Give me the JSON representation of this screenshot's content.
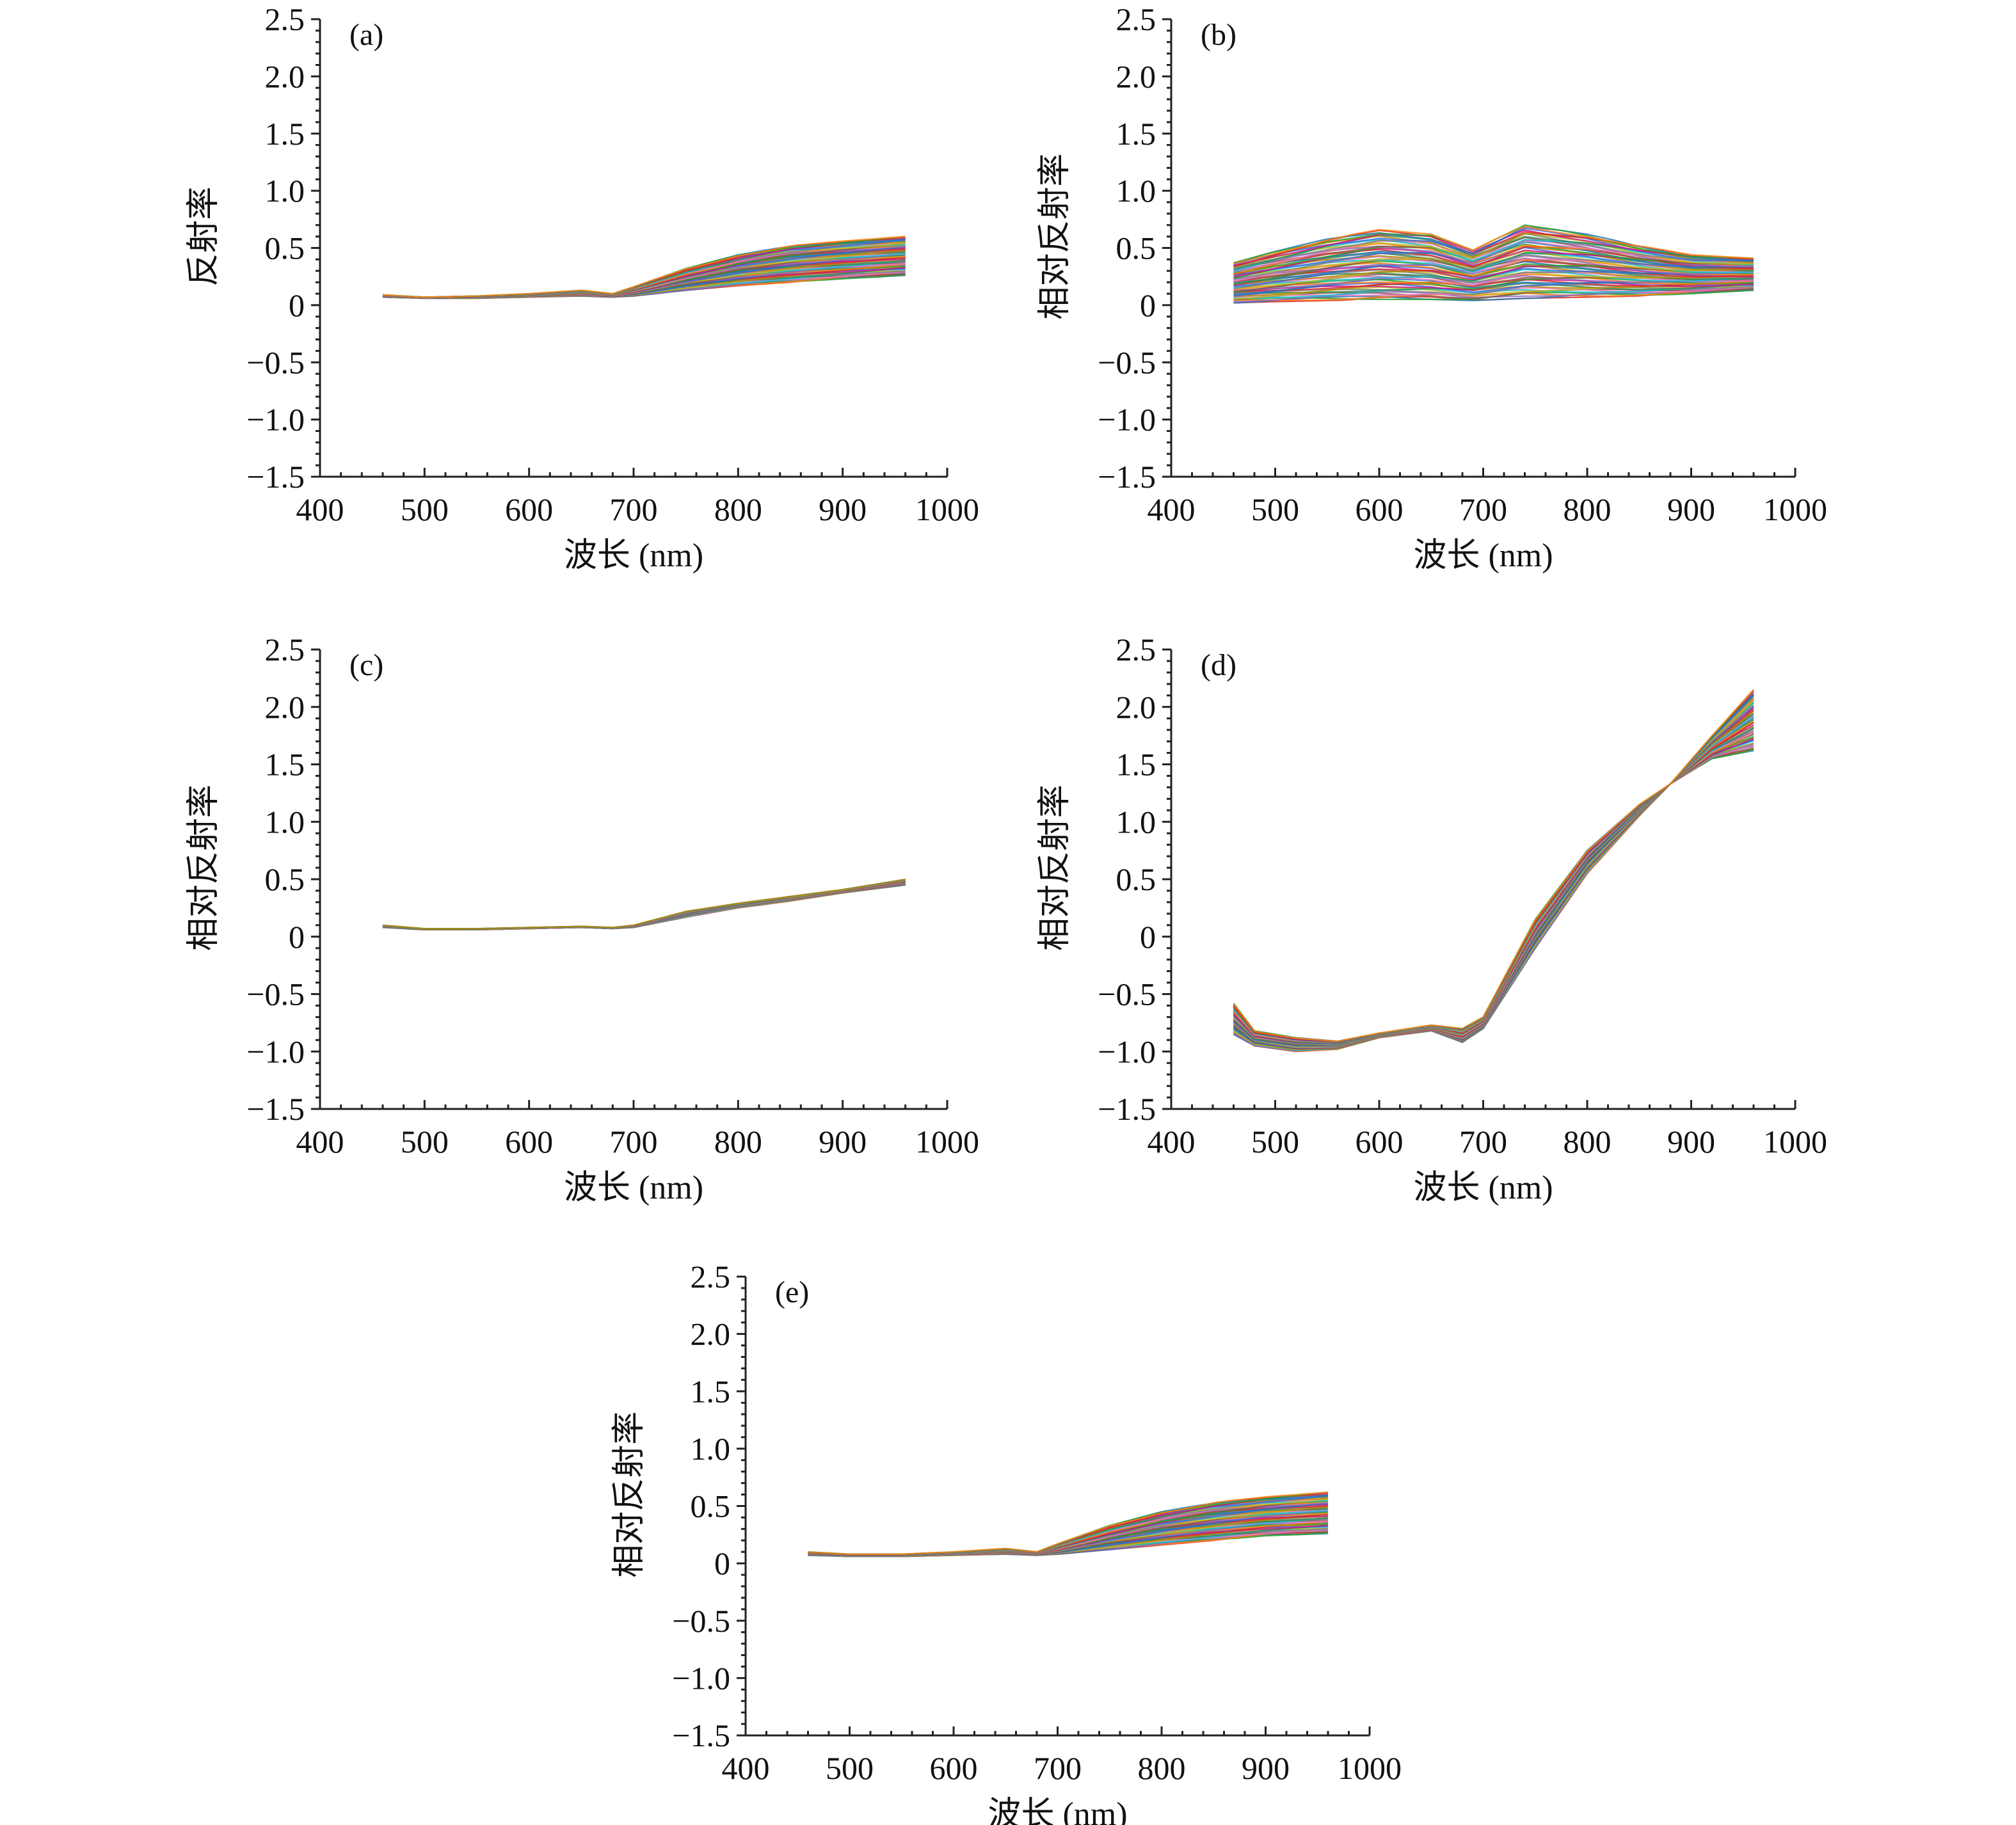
{
  "chart_data": [
    {
      "type": "line",
      "panel_label": "(a)",
      "xlabel": "波长 (nm)",
      "ylabel": "反射率",
      "xlim": [
        400,
        1000
      ],
      "ylim": [
        -1.5,
        2.5
      ],
      "x_ticks": [
        "400",
        "500",
        "600",
        "700",
        "800",
        "900",
        "1000"
      ],
      "y_ticks": [
        "2.5",
        "2.0",
        "1.5",
        "1.0",
        "0.5",
        "0",
        "−0.5",
        "−1.0",
        "−1.5"
      ],
      "grid": false,
      "legend": false,
      "curve_count": 60,
      "x": [
        460,
        500,
        550,
        600,
        650,
        680,
        700,
        750,
        800,
        850,
        900,
        960
      ],
      "envelope": {
        "lower": [
          0.07,
          0.06,
          0.06,
          0.07,
          0.08,
          0.07,
          0.08,
          0.13,
          0.17,
          0.2,
          0.23,
          0.26
        ],
        "upper": [
          0.09,
          0.07,
          0.08,
          0.1,
          0.13,
          0.1,
          0.16,
          0.32,
          0.44,
          0.52,
          0.56,
          0.6
        ]
      }
    },
    {
      "type": "line",
      "panel_label": "(b)",
      "xlabel": "波长 (nm)",
      "ylabel": "相对反射率",
      "xlim": [
        400,
        1000
      ],
      "ylim": [
        -1.5,
        2.5
      ],
      "x_ticks": [
        "400",
        "500",
        "600",
        "700",
        "800",
        "900",
        "1000"
      ],
      "y_ticks": [
        "2.5",
        "2.0",
        "1.5",
        "1.0",
        "0.5",
        "0",
        "−0.5",
        "−1.0",
        "−1.5"
      ],
      "grid": false,
      "legend": false,
      "curve_count": 60,
      "x": [
        460,
        500,
        550,
        600,
        650,
        690,
        740,
        800,
        850,
        900,
        960
      ],
      "envelope": {
        "lower": [
          0.02,
          0.03,
          0.04,
          0.05,
          0.05,
          0.04,
          0.06,
          0.07,
          0.08,
          0.1,
          0.13
        ],
        "upper": [
          0.37,
          0.47,
          0.58,
          0.66,
          0.62,
          0.48,
          0.7,
          0.62,
          0.52,
          0.44,
          0.41
        ]
      }
    },
    {
      "type": "line",
      "panel_label": "(c)",
      "xlabel": "波长 (nm)",
      "ylabel": "相对反射率",
      "xlim": [
        400,
        1000
      ],
      "ylim": [
        -1.5,
        2.5
      ],
      "x_ticks": [
        "400",
        "500",
        "600",
        "700",
        "800",
        "900",
        "1000"
      ],
      "y_ticks": [
        "2.5",
        "2.0",
        "1.5",
        "1.0",
        "0.5",
        "0",
        "−0.5",
        "−1.0",
        "−1.5"
      ],
      "grid": false,
      "legend": false,
      "curve_count": 40,
      "x": [
        460,
        500,
        550,
        600,
        650,
        680,
        700,
        750,
        800,
        850,
        900,
        960
      ],
      "envelope": {
        "lower": [
          0.08,
          0.06,
          0.06,
          0.07,
          0.08,
          0.07,
          0.08,
          0.17,
          0.25,
          0.31,
          0.38,
          0.45
        ],
        "upper": [
          0.1,
          0.07,
          0.07,
          0.08,
          0.09,
          0.08,
          0.1,
          0.22,
          0.29,
          0.35,
          0.41,
          0.5
        ]
      }
    },
    {
      "type": "line",
      "panel_label": "(d)",
      "xlabel": "波长 (nm)",
      "ylabel": "相对反射率",
      "xlim": [
        400,
        1000
      ],
      "ylim": [
        -1.5,
        2.5
      ],
      "x_ticks": [
        "400",
        "500",
        "600",
        "700",
        "800",
        "900",
        "1000"
      ],
      "y_ticks": [
        "2.5",
        "2.0",
        "1.5",
        "1.0",
        "0.5",
        "0",
        "−0.5",
        "−1.0",
        "−1.5"
      ],
      "grid": false,
      "legend": false,
      "curve_count": 60,
      "x": [
        460,
        480,
        520,
        560,
        600,
        650,
        680,
        700,
        750,
        800,
        850,
        880,
        920,
        960
      ],
      "envelope": {
        "lower": [
          -0.85,
          -0.95,
          -1.0,
          -0.98,
          -0.88,
          -0.82,
          -0.92,
          -0.8,
          -0.1,
          0.55,
          1.05,
          1.33,
          1.55,
          1.62
        ],
        "upper": [
          -0.58,
          -0.82,
          -0.88,
          -0.91,
          -0.84,
          -0.77,
          -0.8,
          -0.7,
          0.15,
          0.75,
          1.15,
          1.33,
          1.75,
          2.15
        ]
      }
    },
    {
      "type": "line",
      "panel_label": "(e)",
      "xlabel": "波长 (nm)",
      "ylabel": "相对反射率",
      "xlim": [
        400,
        1000
      ],
      "ylim": [
        -1.5,
        2.5
      ],
      "x_ticks": [
        "400",
        "500",
        "600",
        "700",
        "800",
        "900",
        "1000"
      ],
      "y_ticks": [
        "2.5",
        "2.0",
        "1.5",
        "1.0",
        "0.5",
        "0",
        "−0.5",
        "−1.0",
        "−1.5"
      ],
      "grid": false,
      "legend": false,
      "curve_count": 60,
      "x": [
        460,
        500,
        550,
        600,
        650,
        680,
        700,
        750,
        800,
        850,
        900,
        960
      ],
      "envelope": {
        "lower": [
          0.07,
          0.06,
          0.06,
          0.07,
          0.08,
          0.07,
          0.08,
          0.12,
          0.16,
          0.2,
          0.24,
          0.26
        ],
        "upper": [
          0.1,
          0.08,
          0.08,
          0.1,
          0.13,
          0.1,
          0.17,
          0.33,
          0.45,
          0.53,
          0.58,
          0.62
        ]
      }
    }
  ],
  "colors": {
    "axis": "#222222",
    "text": "#111111",
    "palette": [
      "#d62728",
      "#1f77b4",
      "#2ca02c",
      "#ff7f0e",
      "#9467bd",
      "#8c564b",
      "#e377c2",
      "#17becf",
      "#bcbd22",
      "#7f7f7f",
      "#2e8b57",
      "#b8860b",
      "#4169e1",
      "#c71585"
    ]
  }
}
